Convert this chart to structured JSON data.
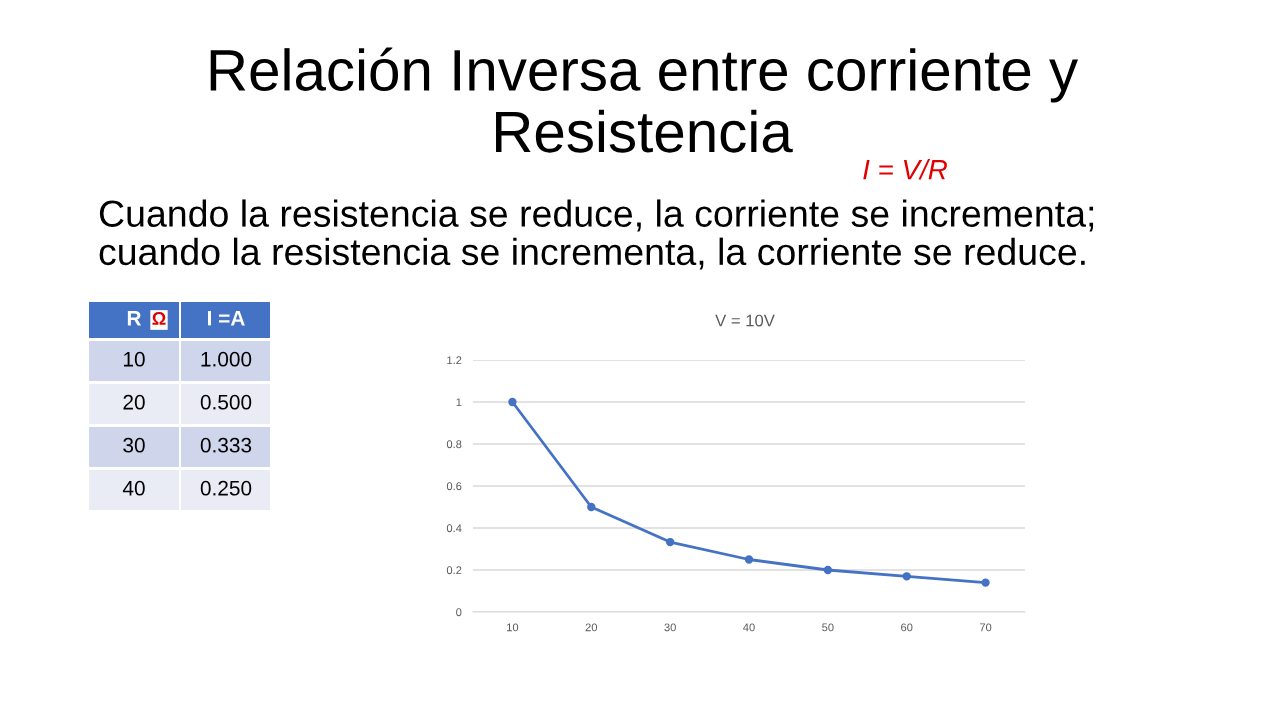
{
  "chart_data": {
    "type": "line",
    "title": "Relación Inversa entre corriente y\nResistencia",
    "subtitle": "Cuando la resistencia se reduce, la corriente se incrementa;\ncuando la resistencia se incrementa, la corriente se reduce.",
    "annotations": [
      "V = 10V",
      "I = V/R",
      "R",
      "Ω",
      "I =A"
    ],
    "categories": [
      "10",
      "20",
      "30",
      "40",
      "50",
      "60",
      "70"
    ],
    "series": [
      {
        "color": "#4472c4",
        "values": [
          1,
          0.5,
          0.333,
          0.25,
          0.2,
          0.17,
          0.14
        ]
      }
    ],
    "value_labels": [
      "1.000",
      "0.500",
      "0.333",
      "0.250",
      null,
      null,
      null
    ],
    "ylim": [
      0,
      1.2
    ],
    "yticks": [
      0,
      0.2,
      0.4,
      0.6,
      0.8,
      1,
      1.2
    ],
    "grid": "y",
    "marker": "circle",
    "line_style": "solid"
  }
}
